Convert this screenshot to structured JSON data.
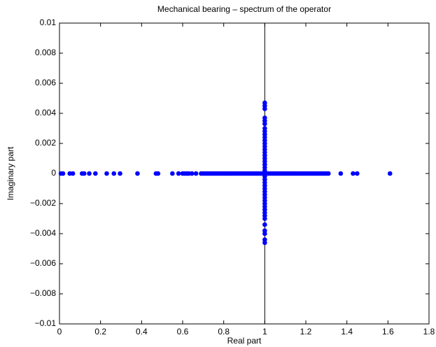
{
  "chart_data": {
    "type": "scatter",
    "title": "Mechanical bearing – spectrum of the operator",
    "xlabel": "Real part",
    "ylabel": "Imaginary part",
    "xlim": [
      0,
      1.8
    ],
    "ylim": [
      -0.01,
      0.01
    ],
    "xticks": [
      0,
      0.2,
      0.4,
      0.6,
      0.8,
      1,
      1.2,
      1.4,
      1.6,
      1.8
    ],
    "yticks": [
      {
        "value": -0.01,
        "label": "−0.01"
      },
      {
        "value": -0.008,
        "label": "−0.008"
      },
      {
        "value": -0.006,
        "label": "−0.006"
      },
      {
        "value": -0.004,
        "label": "−0.004"
      },
      {
        "value": -0.002,
        "label": "−0.002"
      },
      0,
      0.002,
      0.004,
      0.006,
      0.008,
      0.01
    ],
    "vlines": [
      1
    ],
    "series": [
      {
        "color": "#0000ff",
        "x": [
          0.007,
          0.017,
          0.05,
          0.065,
          0.11,
          0.12,
          0.145,
          0.175,
          0.23,
          0.265,
          0.295,
          0.38,
          0.47,
          0.48,
          0.55,
          0.58,
          0.6,
          0.61,
          0.62,
          0.63,
          0.645,
          0.665,
          0.69,
          0.7,
          0.71,
          0.72,
          0.73,
          0.74,
          0.75,
          0.76,
          0.77,
          0.78,
          0.79,
          0.8,
          0.81,
          0.82,
          0.83,
          0.84,
          0.85,
          0.86,
          0.87,
          0.88,
          0.89,
          0.9,
          0.91,
          0.92,
          0.93,
          0.94,
          0.95,
          0.96,
          0.97,
          0.98,
          0.99,
          1.01,
          1.02,
          1.03,
          1.04,
          1.05,
          1.06,
          1.07,
          1.08,
          1.09,
          1.1,
          1.11,
          1.12,
          1.13,
          1.14,
          1.15,
          1.16,
          1.17,
          1.18,
          1.19,
          1.2,
          1.21,
          1.22,
          1.23,
          1.24,
          1.25,
          1.26,
          1.27,
          1.28,
          1.29,
          1.3,
          1.31,
          1.37,
          1.43,
          1.45,
          1.61
        ],
        "y": [
          0,
          0,
          0,
          0,
          0,
          0,
          0,
          0,
          0,
          0,
          0,
          0,
          0,
          0,
          0,
          0,
          0,
          0,
          0,
          0,
          0,
          0,
          0,
          0,
          0,
          0,
          0,
          0,
          0,
          0,
          0,
          0,
          0,
          0,
          0,
          0,
          0,
          0,
          0,
          0,
          0,
          0,
          0,
          0,
          0,
          0,
          0,
          0,
          0,
          0,
          0,
          0,
          0,
          0,
          0,
          0,
          0,
          0,
          0,
          0,
          0,
          0,
          0,
          0,
          0,
          0,
          0,
          0,
          0,
          0,
          0,
          0,
          0,
          0,
          0,
          0,
          0,
          0,
          0,
          0,
          0,
          0,
          0,
          0,
          0,
          0,
          0,
          0
        ]
      },
      {
        "color": "#0000ff",
        "x": [
          1,
          1,
          1,
          1,
          1,
          1,
          1,
          1,
          1,
          1,
          1,
          1,
          1,
          1,
          1,
          1,
          1,
          1,
          1,
          1,
          1,
          1,
          1,
          1,
          1,
          1,
          1,
          1,
          1,
          1,
          1,
          1,
          1,
          1,
          1,
          1,
          1,
          1,
          1,
          1,
          1,
          1
        ],
        "y": [
          0.0047,
          0.0045,
          0.0043,
          0.0037,
          0.0035,
          0.0033,
          0.003,
          0.0028,
          0.0026,
          0.0024,
          0.0022,
          0.002,
          0.0018,
          0.0016,
          0.0014,
          0.0012,
          0.001,
          0.0008,
          0.0006,
          0.0004,
          0.0002,
          0,
          -0.0002,
          -0.0004,
          -0.0006,
          -0.0008,
          -0.001,
          -0.0012,
          -0.0014,
          -0.0016,
          -0.0018,
          -0.002,
          -0.0022,
          -0.0024,
          -0.0026,
          -0.0028,
          -0.003,
          -0.0034,
          -0.0038,
          -0.004,
          -0.0044,
          -0.0046
        ]
      }
    ]
  }
}
